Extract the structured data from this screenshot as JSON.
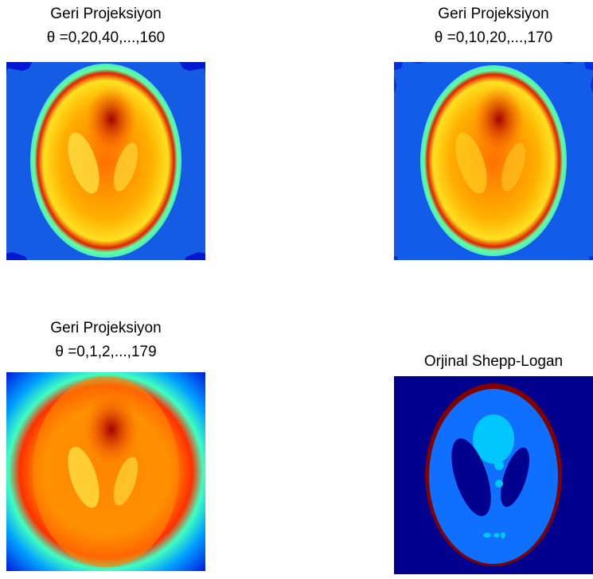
{
  "panels": [
    {
      "title": [
        "Geri Projeksiyon",
        "θ =0,20,40,...,160"
      ]
    },
    {
      "title": [
        "Geri Projeksiyon",
        "θ =0,10,20,...,170"
      ]
    },
    {
      "title": [
        "Geri Projeksiyon",
        "θ =0,1,2,...,179"
      ]
    },
    {
      "title": [
        "Orjinal Shepp-Logan"
      ]
    }
  ]
}
